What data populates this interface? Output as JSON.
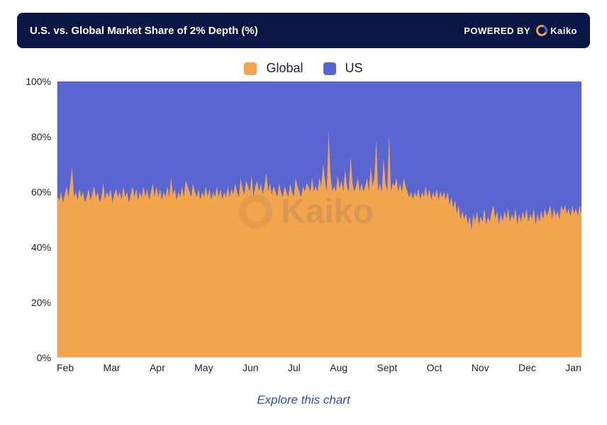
{
  "header": {
    "title": "U.S. vs. Global Market Share of 2% Depth (%)",
    "powered_label": "POWERED BY",
    "brand": "Kaiko"
  },
  "legend": {
    "items": [
      {
        "label": "Global",
        "color": "#f2a54d"
      },
      {
        "label": "US",
        "color": "#5966d1"
      }
    ]
  },
  "chart": {
    "type": "stacked-area-100",
    "background_color": "#ffffff",
    "global_color": "#f2a54d",
    "us_color": "#5966d1",
    "axis_color": "#d9d9e0",
    "text_color": "#1a1f36",
    "ylim": [
      0,
      100
    ],
    "ytick_step": 20,
    "yticks": [
      "0%",
      "20%",
      "40%",
      "60%",
      "80%",
      "100%"
    ],
    "x_categories": [
      "Feb",
      "Mar",
      "Apr",
      "May",
      "Jun",
      "Jul",
      "Aug",
      "Sept",
      "Oct",
      "Nov",
      "Dec",
      "Jan"
    ],
    "global_share": [
      58,
      57,
      60,
      56,
      59,
      62,
      58,
      63,
      69,
      58,
      60,
      57,
      61,
      58,
      60,
      56,
      58,
      61,
      57,
      59,
      62,
      58,
      60,
      56,
      58,
      63,
      57,
      60,
      58,
      61,
      56,
      59,
      61,
      58,
      60,
      57,
      62,
      58,
      60,
      56,
      59,
      62,
      58,
      61,
      57,
      60,
      58,
      62,
      58,
      61,
      57,
      60,
      63,
      58,
      62,
      58,
      61,
      57,
      60,
      58,
      62,
      58,
      65,
      59,
      61,
      57,
      60,
      58,
      62,
      58,
      64,
      62,
      60,
      58,
      63,
      60,
      58,
      61,
      57,
      60,
      58,
      62,
      58,
      61,
      57,
      60,
      58,
      62,
      58,
      61,
      57,
      60,
      58,
      62,
      58,
      61,
      59,
      63,
      60,
      58,
      65,
      61,
      59,
      64,
      62,
      60,
      66,
      58,
      62,
      64,
      60,
      63,
      59,
      62,
      67,
      60,
      63,
      59,
      62,
      60,
      58,
      63,
      60,
      58,
      62,
      60,
      58,
      63,
      60,
      58,
      65,
      62,
      60,
      58,
      62,
      60,
      63,
      62,
      60,
      65,
      60,
      62,
      60,
      65,
      62,
      70,
      64,
      60,
      82,
      66,
      60,
      62,
      60,
      66,
      61,
      64,
      60,
      68,
      62,
      60,
      73,
      63,
      60,
      62,
      65,
      60,
      63,
      60,
      62,
      65,
      60,
      69,
      62,
      65,
      79,
      60,
      63,
      60,
      72,
      63,
      60,
      81,
      60,
      63,
      62,
      65,
      60,
      63,
      60,
      65,
      62,
      60,
      58,
      60,
      57,
      60,
      58,
      61,
      57,
      60,
      58,
      62,
      58,
      61,
      57,
      60,
      58,
      61,
      57,
      60,
      58,
      60,
      57,
      60,
      55,
      58,
      54,
      57,
      52,
      55,
      50,
      53,
      50,
      52,
      48,
      51,
      46,
      52,
      49,
      53,
      48,
      51,
      49,
      54,
      48,
      51,
      49,
      53,
      55,
      50,
      53,
      48,
      52,
      49,
      53,
      50,
      54,
      49,
      52,
      50,
      54,
      48,
      52,
      49,
      53,
      50,
      54,
      49,
      52,
      50,
      54,
      48,
      52,
      49,
      53,
      50,
      54,
      51,
      53,
      55,
      50,
      54,
      51,
      53,
      50,
      55,
      53,
      55,
      52,
      54,
      51,
      55,
      52,
      54,
      51,
      55,
      52
    ],
    "watermark": "Kaiko"
  },
  "footer": {
    "explore_label": "Explore this chart"
  },
  "styling": {
    "header_bg": "#0a1744",
    "title_fontsize": 15,
    "legend_fontsize": 18,
    "axis_fontsize": 14,
    "explore_color": "#2a4bd7",
    "brand_ring_primary": "#f5a14b",
    "brand_ring_secondary": "#5562c8"
  }
}
